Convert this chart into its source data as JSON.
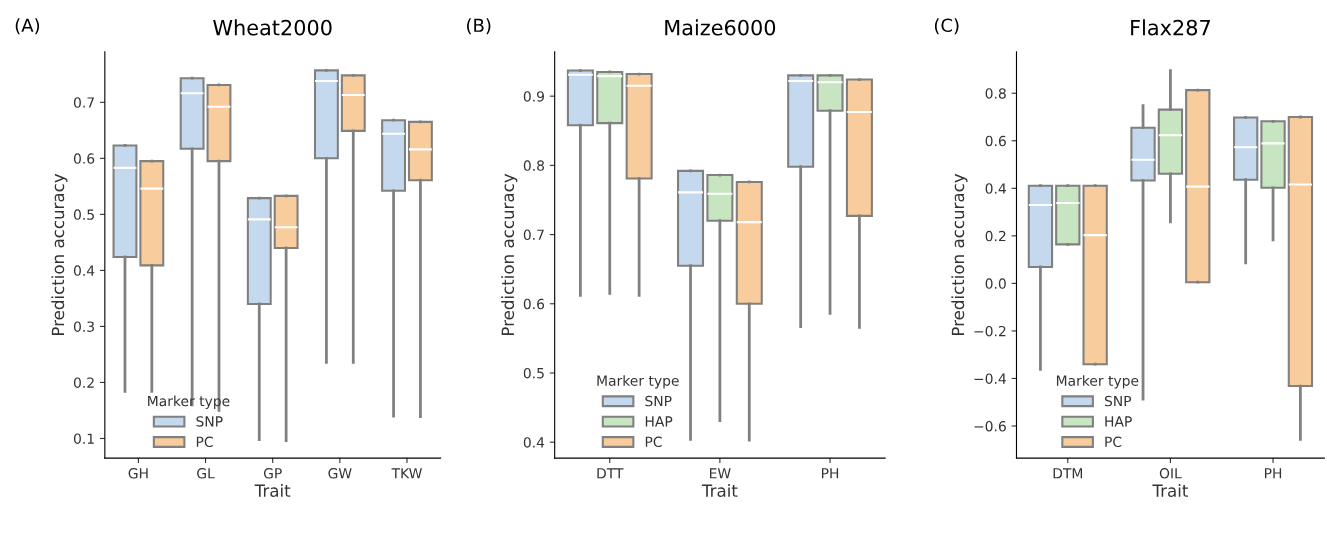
{
  "chart_data": [
    {
      "type": "box",
      "title": "Wheat2000",
      "xlabel": "Trait",
      "ylabel": "Prediction accuracy",
      "legend_title": "Marker type",
      "legend": "bottom left",
      "grid": false,
      "annotations": [
        "(A)"
      ],
      "categories": [
        "GH",
        "GL",
        "GP",
        "GW",
        "TKW"
      ],
      "ylim": [
        0.065,
        0.79
      ],
      "yticks": [
        0.1,
        0.2,
        0.3,
        0.4,
        0.5,
        0.6,
        0.7
      ],
      "series": [
        {
          "name": "SNP",
          "color": "#c5d9ee",
          "boxes": [
            {
              "low": 0.184,
              "q1": 0.424,
              "median": 0.583,
              "q3": 0.623,
              "high": 0.623
            },
            {
              "low": 0.16,
              "q1": 0.617,
              "median": 0.716,
              "q3": 0.743,
              "high": 0.743
            },
            {
              "low": 0.098,
              "q1": 0.34,
              "median": 0.491,
              "q3": 0.529,
              "high": 0.529
            },
            {
              "low": 0.236,
              "q1": 0.6,
              "median": 0.738,
              "q3": 0.757,
              "high": 0.757
            },
            {
              "low": 0.14,
              "q1": 0.542,
              "median": 0.644,
              "q3": 0.668,
              "high": 0.668
            }
          ]
        },
        {
          "name": "PC",
          "color": "#f9cc9d",
          "boxes": [
            {
              "low": 0.184,
              "q1": 0.409,
              "median": 0.546,
              "q3": 0.595,
              "high": 0.595
            },
            {
              "low": 0.15,
              "q1": 0.595,
              "median": 0.692,
              "q3": 0.731,
              "high": 0.731
            },
            {
              "low": 0.096,
              "q1": 0.44,
              "median": 0.477,
              "q3": 0.533,
              "high": 0.533
            },
            {
              "low": 0.236,
              "q1": 0.649,
              "median": 0.713,
              "q3": 0.748,
              "high": 0.748
            },
            {
              "low": 0.139,
              "q1": 0.561,
              "median": 0.616,
              "q3": 0.665,
              "high": 0.665
            }
          ]
        }
      ]
    },
    {
      "type": "box",
      "title": "Maize6000",
      "xlabel": "Trait",
      "ylabel": "Prediction accuracy",
      "legend_title": "Marker type",
      "legend": "bottom left",
      "grid": false,
      "annotations": [
        "(B)"
      ],
      "categories": [
        "DTT",
        "EW",
        "PH"
      ],
      "ylim": [
        0.377,
        0.964
      ],
      "yticks": [
        0.4,
        0.5,
        0.6,
        0.7,
        0.8,
        0.9
      ],
      "series": [
        {
          "name": "SNP",
          "color": "#c5d9ee",
          "boxes": [
            {
              "low": 0.612,
              "q1": 0.858,
              "median": 0.931,
              "q3": 0.937,
              "high": 0.937
            },
            {
              "low": 0.404,
              "q1": 0.655,
              "median": 0.761,
              "q3": 0.792,
              "high": 0.792
            },
            {
              "low": 0.567,
              "q1": 0.798,
              "median": 0.922,
              "q3": 0.93,
              "high": 0.93
            }
          ]
        },
        {
          "name": "HAP",
          "color": "#c7e5c0",
          "boxes": [
            {
              "low": 0.615,
              "q1": 0.861,
              "median": 0.929,
              "q3": 0.935,
              "high": 0.935
            },
            {
              "low": 0.431,
              "q1": 0.72,
              "median": 0.759,
              "q3": 0.786,
              "high": 0.786
            },
            {
              "low": 0.586,
              "q1": 0.879,
              "median": 0.92,
              "q3": 0.93,
              "high": 0.93
            }
          ]
        },
        {
          "name": "PC",
          "color": "#f9cc9d",
          "boxes": [
            {
              "low": 0.612,
              "q1": 0.781,
              "median": 0.915,
              "q3": 0.932,
              "high": 0.932
            },
            {
              "low": 0.403,
              "q1": 0.6,
              "median": 0.718,
              "q3": 0.776,
              "high": 0.776
            },
            {
              "low": 0.566,
              "q1": 0.727,
              "median": 0.877,
              "q3": 0.924,
              "high": 0.924
            }
          ]
        }
      ]
    },
    {
      "type": "box",
      "title": "Flax287",
      "xlabel": "Trait",
      "ylabel": "Prediction accuracy",
      "legend_title": "Marker type",
      "legend": "bottom left",
      "grid": false,
      "annotations": [
        "(C)"
      ],
      "categories": [
        "DTM",
        "OIL",
        "PH"
      ],
      "ylim": [
        -0.735,
        0.974
      ],
      "yticks": [
        {
          "value": -0.6,
          "label": "−0.6"
        },
        {
          "value": -0.4,
          "label": "−0.4"
        },
        {
          "value": -0.2,
          "label": "−0.2"
        },
        {
          "value": 0.0,
          "label": "0.0"
        },
        {
          "value": 0.2,
          "label": "0.2"
        },
        {
          "value": 0.4,
          "label": "0.4"
        },
        {
          "value": 0.6,
          "label": "0.6"
        },
        {
          "value": 0.8,
          "label": "0.8"
        }
      ],
      "series": [
        {
          "name": "SNP",
          "color": "#c5d9ee",
          "boxes": [
            {
              "low": -0.362,
              "q1": 0.069,
              "median": 0.33,
              "q3": 0.411,
              "high": 0.411
            },
            {
              "low": -0.487,
              "q1": 0.433,
              "median": 0.52,
              "q3": 0.655,
              "high": 0.748
            },
            {
              "low": 0.086,
              "q1": 0.436,
              "median": 0.573,
              "q3": 0.698,
              "high": 0.698
            }
          ]
        },
        {
          "name": "HAP",
          "color": "#c7e5c0",
          "boxes": [
            {
              "low": 0.164,
              "q1": 0.164,
              "median": 0.338,
              "q3": 0.411,
              "high": 0.411
            },
            {
              "low": 0.259,
              "q1": 0.461,
              "median": 0.623,
              "q3": 0.731,
              "high": 0.895
            },
            {
              "low": 0.183,
              "q1": 0.402,
              "median": 0.589,
              "q3": 0.682,
              "high": 0.682
            }
          ]
        },
        {
          "name": "PC",
          "color": "#f9cc9d",
          "boxes": [
            {
              "low": -0.34,
              "q1": -0.34,
              "median": 0.203,
              "q3": 0.411,
              "high": 0.411
            },
            {
              "low": 0.005,
              "q1": 0.005,
              "median": 0.407,
              "q3": 0.813,
              "high": 0.813
            },
            {
              "low": -0.656,
              "q1": -0.432,
              "median": 0.416,
              "q3": 0.7,
              "high": 0.7
            }
          ]
        }
      ]
    }
  ]
}
